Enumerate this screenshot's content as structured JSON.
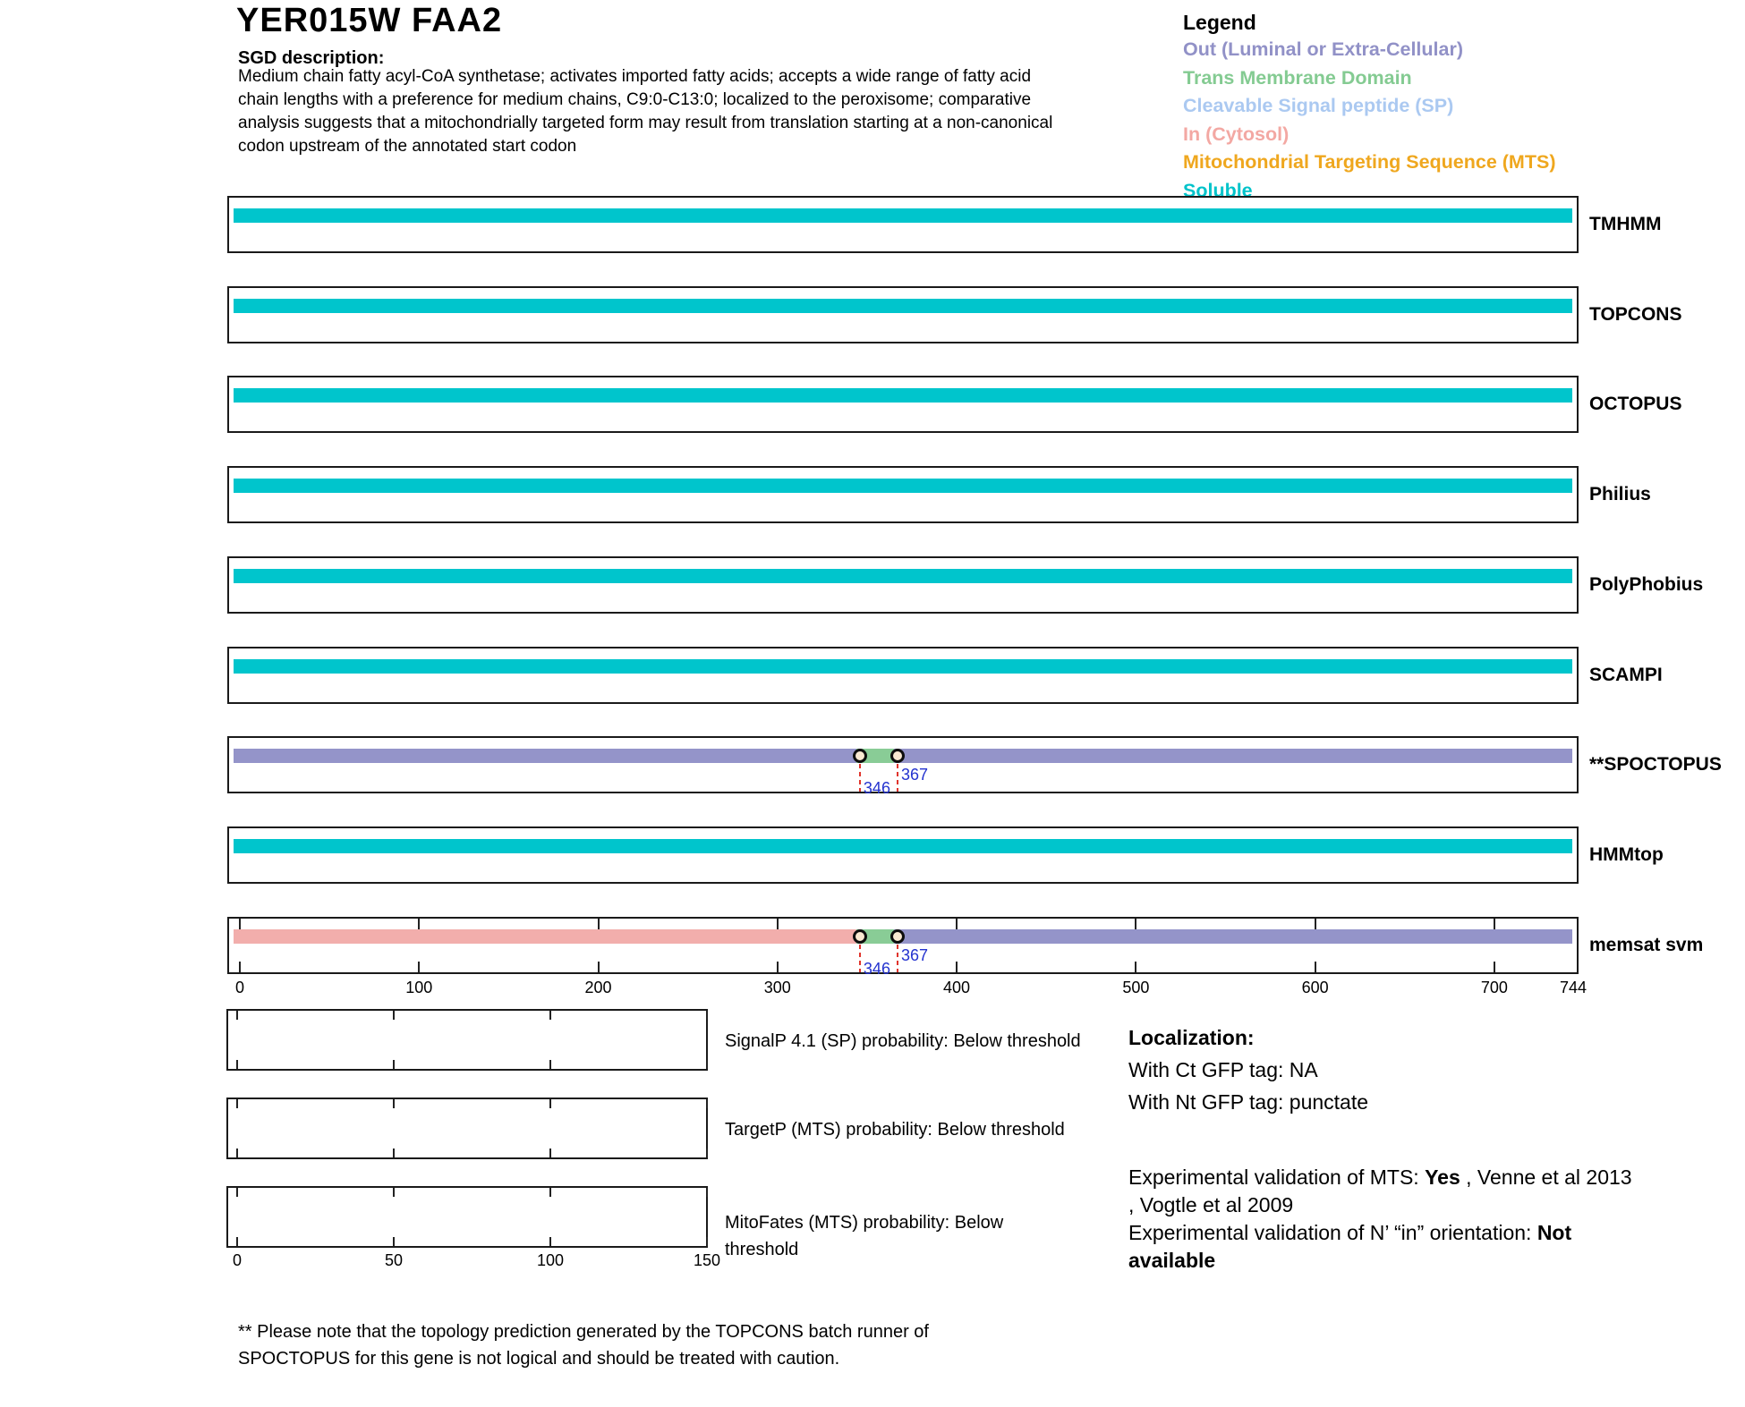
{
  "header": {
    "title": "YER015W  FAA2",
    "sgd_label": "SGD description:",
    "description_lines": [
      "Medium chain fatty acyl-CoA synthetase; activates imported fatty acids; accepts a wide range of fatty acid",
      "chain lengths with a preference for medium chains, C9:0-C13:0; localized to the peroxisome; comparative",
      "analysis suggests that a mitochondrially targeted form may result from translation starting at a non-canonical",
      "codon upstream of the annotated start codon"
    ]
  },
  "legend": {
    "title": "Legend",
    "items": [
      {
        "label": "Out (Luminal or Extra-Cellular)",
        "key": "out",
        "color": "#9191c7"
      },
      {
        "label": "Trans Membrane Domain",
        "key": "tm",
        "color": "#84cb92"
      },
      {
        "label": "Cleavable Signal peptide (SP)",
        "key": "sp",
        "color": "#abc9f1"
      },
      {
        "label": "In (Cytosol)",
        "key": "in",
        "color": "#f3a8a3"
      },
      {
        "label": "Mitochondrial Targeting Sequence (MTS)",
        "key": "mts",
        "color": "#efa71e"
      },
      {
        "label": "Soluble",
        "key": "soluble",
        "color": "#00c3ca"
      }
    ]
  },
  "chart_data": {
    "type": "bar",
    "orientation": "horizontal-topology-tracks",
    "x_range": [
      0,
      744
    ],
    "x_ticks": [
      0,
      100,
      200,
      300,
      400,
      500,
      600,
      700,
      744
    ],
    "colors": {
      "soluble": "#00c5cc",
      "out": "#9494c9",
      "tm": "#89cc96",
      "in": "#f2aeac",
      "sp": "#abc9f1",
      "mts": "#efa71e"
    },
    "tracks": [
      {
        "label": "TMHMM",
        "segments": [
          {
            "start": 0,
            "end": 744,
            "type": "soluble"
          }
        ]
      },
      {
        "label": "TOPCONS",
        "segments": [
          {
            "start": 0,
            "end": 744,
            "type": "soluble"
          }
        ]
      },
      {
        "label": "OCTOPUS",
        "segments": [
          {
            "start": 0,
            "end": 744,
            "type": "soluble"
          }
        ]
      },
      {
        "label": "Philius",
        "segments": [
          {
            "start": 0,
            "end": 744,
            "type": "soluble"
          }
        ]
      },
      {
        "label": "PolyPhobius",
        "segments": [
          {
            "start": 0,
            "end": 744,
            "type": "soluble"
          }
        ]
      },
      {
        "label": "SCAMPI",
        "segments": [
          {
            "start": 0,
            "end": 744,
            "type": "soluble"
          }
        ]
      },
      {
        "label": "**SPOCTOPUS",
        "segments": [
          {
            "start": 0,
            "end": 346,
            "type": "out"
          },
          {
            "start": 346,
            "end": 367,
            "type": "tm"
          },
          {
            "start": 367,
            "end": 744,
            "type": "out"
          }
        ],
        "boundary_markers": [
          346,
          367
        ]
      },
      {
        "label": "HMMtop",
        "segments": [
          {
            "start": 0,
            "end": 744,
            "type": "soluble"
          }
        ]
      },
      {
        "label": "memsat svm",
        "segments": [
          {
            "start": 0,
            "end": 346,
            "type": "in"
          },
          {
            "start": 346,
            "end": 367,
            "type": "tm"
          },
          {
            "start": 367,
            "end": 744,
            "type": "out"
          }
        ],
        "boundary_markers": [
          346,
          367
        ],
        "ruler": true
      }
    ]
  },
  "probability_plots": {
    "x_ticks": [
      0,
      50,
      100,
      150
    ],
    "plots": [
      {
        "caption": "SignalP 4.1 (SP) probability: Below threshold",
        "wrap": false
      },
      {
        "caption": "TargetP (MTS) probability: Below threshold",
        "wrap": false
      },
      {
        "caption": "MitoFates (MTS) probability: Below threshold",
        "wrap": true
      }
    ]
  },
  "localization": {
    "title": "Localization:",
    "ct_line": "With Ct GFP tag: NA",
    "nt_line": "With Nt GFP tag: punctate"
  },
  "validation_lines": [
    [
      {
        "text": "Experimental validation of MTS: "
      },
      {
        "text": "Yes",
        "bold": true
      },
      {
        "text": " , Venne et al 2013"
      }
    ],
    [
      {
        "text": ", Vogtle et al 2009"
      }
    ],
    [
      {
        "text": "Experimental validation of N’ “in” orientation: "
      },
      {
        "text": "Not",
        "bold": true
      }
    ],
    [
      {
        "text": "available",
        "bold": true
      }
    ]
  ],
  "footnote_lines": [
    "** Please note that the topology prediction generated by the TOPCONS batch runner of",
    "SPOCTOPUS for this gene is not logical and should be treated with caution."
  ]
}
